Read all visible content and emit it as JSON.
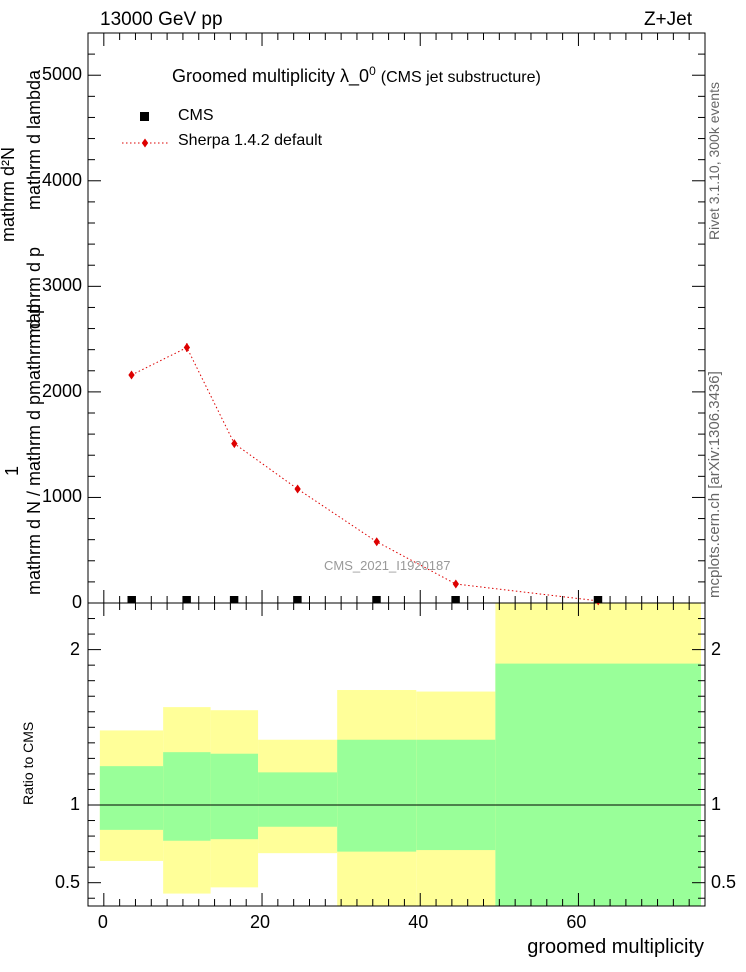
{
  "header": {
    "energy_label": "13000 GeV pp",
    "process_label": "Z+Jet"
  },
  "side_labels": {
    "rivet": "Rivet 3.1.10,  300k events",
    "mcplots": "mcplots.cern.ch [arXiv:1306.3436]"
  },
  "watermark": "CMS_2021_I1920187",
  "chart_data": [
    {
      "type": "line",
      "title": "Groomed multiplicity  λ_0⁰ (CMS jet substructure)",
      "title_main": "Groomed multiplicity  λ_0",
      "title_sup": "0",
      "title_suffix": "(CMS jet substructure)",
      "ylabel_lines": [
        "1",
        "mathrm d²N / mathrm d p_T mathrm d lambda",
        "mathrm d²N / mathrm d p_T mathrm d lambda"
      ],
      "ylabel_num": "mathrm d²N",
      "ylabel_num2": "mathrm d p",
      "ylabel_num3": "mathrm d lambda",
      "ylabel_den": "mathrm d N / mathrm d p",
      "ylabel_den2": "mathrm d p",
      "ylabel_one": "1",
      "xlim": [
        -2,
        76
      ],
      "ylim": [
        0,
        5400
      ],
      "yticks": [
        0,
        1000,
        2000,
        3000,
        4000,
        5000
      ],
      "ytick_labels": [
        "0",
        "1000",
        "2000",
        "3000",
        "4000",
        "5000"
      ],
      "legend_position": "top-left",
      "series": [
        {
          "name": "CMS",
          "style": "marker",
          "color": "#000000",
          "x": [
            3.5,
            10.5,
            16.5,
            24.5,
            34.5,
            44.5,
            62.5
          ],
          "y": [
            0,
            0,
            0,
            0,
            0,
            0,
            0
          ]
        },
        {
          "name": "Sherpa 1.4.2 default",
          "style": "line+marker",
          "color": "#dd0000",
          "x": [
            3.5,
            10.5,
            16.5,
            24.5,
            34.5,
            44.5,
            62.5
          ],
          "y": [
            2160,
            2420,
            1510,
            1080,
            580,
            180,
            20
          ],
          "yerr": [
            30,
            40,
            25,
            20,
            15,
            8,
            5
          ]
        }
      ]
    },
    {
      "type": "area",
      "ylabel": "Ratio to CMS",
      "xlabel": "groomed multiplicity",
      "xlim": [
        -2,
        76
      ],
      "ylim": [
        0.35,
        2.3
      ],
      "yticks": [
        0.5,
        1,
        2
      ],
      "ytick_labels": [
        "0.5",
        "1",
        "2"
      ],
      "xticks": [
        0,
        20,
        40,
        60
      ],
      "xtick_labels": [
        "0",
        "20",
        "40",
        "60"
      ],
      "reference_line": 1,
      "bins": [
        {
          "x_low": -0.5,
          "x_high": 7.5,
          "green_low": 0.84,
          "green_high": 1.25,
          "yellow_low": 0.64,
          "yellow_high": 1.48
        },
        {
          "x_low": 7.5,
          "x_high": 13.5,
          "green_low": 0.77,
          "green_high": 1.34,
          "yellow_low": 0.43,
          "yellow_high": 1.63
        },
        {
          "x_low": 13.5,
          "x_high": 19.5,
          "green_low": 0.78,
          "green_high": 1.33,
          "yellow_low": 0.47,
          "yellow_high": 1.61
        },
        {
          "x_low": 19.5,
          "x_high": 29.5,
          "green_low": 0.86,
          "green_high": 1.21,
          "yellow_low": 0.69,
          "yellow_high": 1.42
        },
        {
          "x_low": 29.5,
          "x_high": 39.5,
          "green_low": 0.7,
          "green_high": 1.42,
          "yellow_low": 0.35,
          "yellow_high": 1.74
        },
        {
          "x_low": 39.5,
          "x_high": 49.5,
          "green_low": 0.71,
          "green_high": 1.42,
          "yellow_low": 0.35,
          "yellow_high": 1.73
        },
        {
          "x_low": 49.5,
          "x_high": 75.5,
          "green_low": 0.35,
          "green_high": 1.91,
          "yellow_low": 0.35,
          "yellow_high": 2.3
        }
      ],
      "colors": {
        "green": "#99ff99",
        "yellow": "#ffff99"
      }
    }
  ]
}
